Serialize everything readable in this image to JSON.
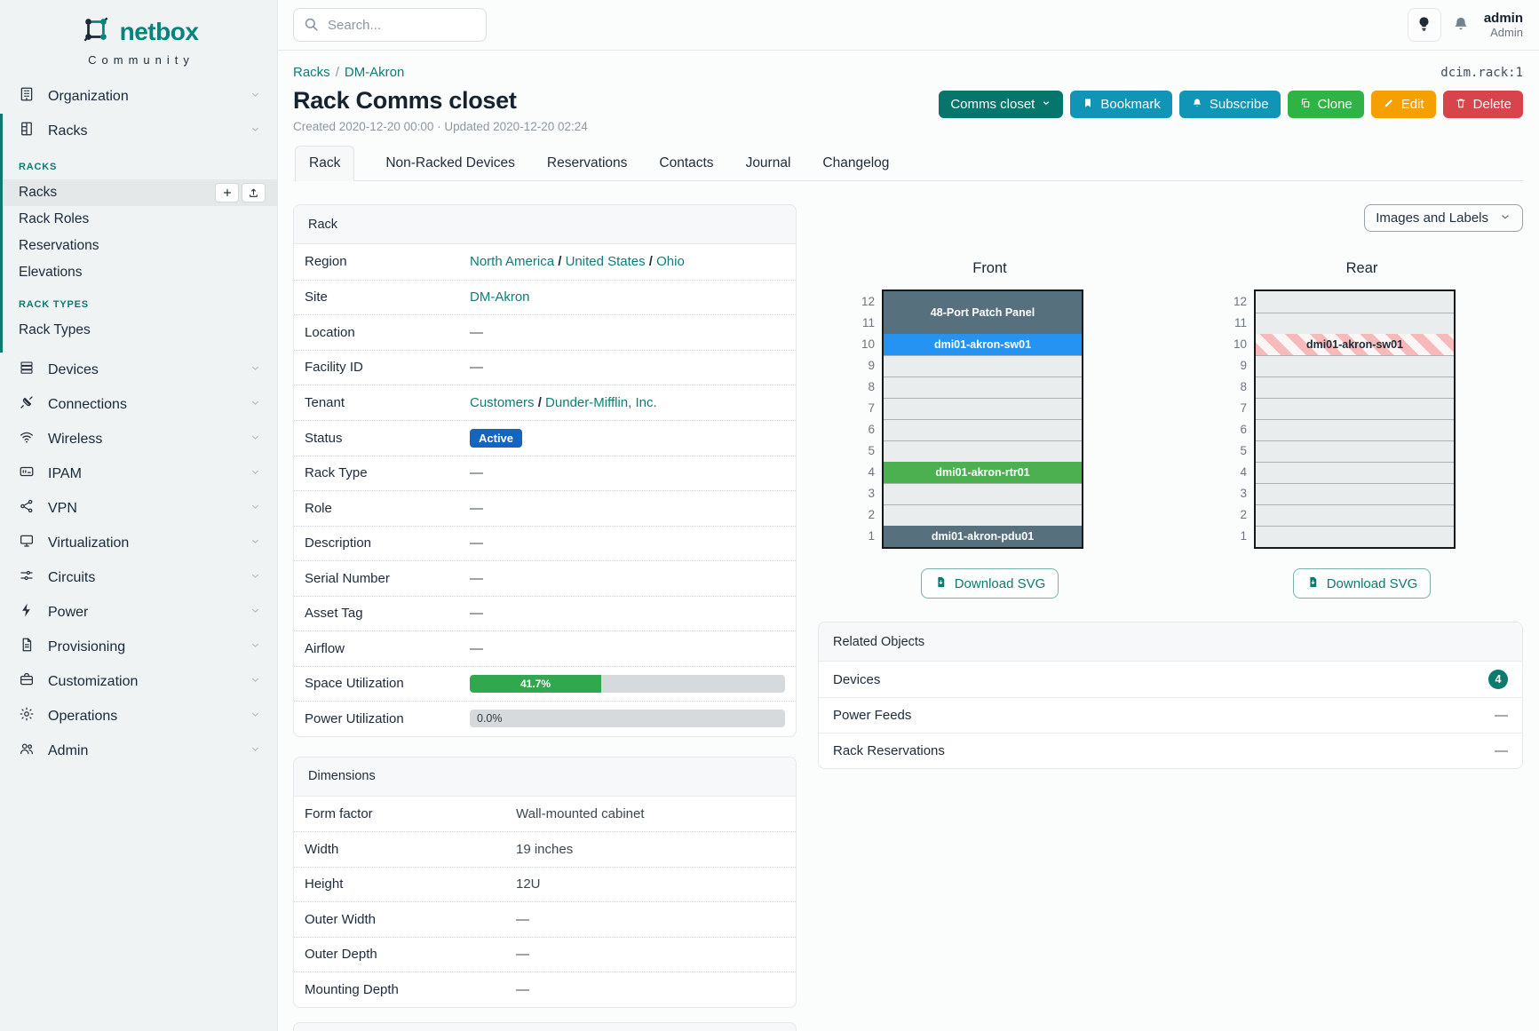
{
  "app": {
    "brand": "netbox",
    "brand_sub": "Community"
  },
  "topbar": {
    "search_placeholder": "Search...",
    "user_name": "admin",
    "user_role": "Admin"
  },
  "sidebar": {
    "top_items": [
      {
        "label": "Organization"
      },
      {
        "label": "Racks"
      }
    ],
    "sections": [
      {
        "header": "RACKS",
        "items": [
          {
            "label": "Racks",
            "active": true
          },
          {
            "label": "Rack Roles"
          },
          {
            "label": "Reservations"
          },
          {
            "label": "Elevations"
          }
        ]
      },
      {
        "header": "RACK TYPES",
        "items": [
          {
            "label": "Rack Types"
          }
        ]
      }
    ],
    "items": [
      {
        "label": "Devices"
      },
      {
        "label": "Connections"
      },
      {
        "label": "Wireless"
      },
      {
        "label": "IPAM"
      },
      {
        "label": "VPN"
      },
      {
        "label": "Virtualization"
      },
      {
        "label": "Circuits"
      },
      {
        "label": "Power"
      },
      {
        "label": "Provisioning"
      },
      {
        "label": "Customization"
      },
      {
        "label": "Operations"
      },
      {
        "label": "Admin"
      }
    ]
  },
  "page": {
    "object_id": "dcim.rack:1",
    "breadcrumb": [
      "Racks",
      "DM-Akron"
    ],
    "title": "Rack Comms closet",
    "meta": "Created 2020-12-20 00:00 · Updated 2020-12-20 02:24",
    "actions": {
      "scope_label": "Comms closet",
      "bookmark_label": "Bookmark",
      "subscribe_label": "Subscribe",
      "clone_label": "Clone",
      "edit_label": "Edit",
      "delete_label": "Delete"
    },
    "tabs": [
      {
        "label": "Rack",
        "active": true
      },
      {
        "label": "Non-Racked Devices"
      },
      {
        "label": "Reservations"
      },
      {
        "label": "Contacts"
      },
      {
        "label": "Journal"
      },
      {
        "label": "Changelog"
      }
    ]
  },
  "rack_panel": {
    "title": "Rack",
    "rows": [
      {
        "label": "Region",
        "type": "links",
        "parts": [
          "North America",
          "United States",
          "Ohio"
        ]
      },
      {
        "label": "Site",
        "type": "links",
        "parts": [
          "DM-Akron"
        ]
      },
      {
        "label": "Location",
        "type": "text",
        "value": "—"
      },
      {
        "label": "Facility ID",
        "type": "text",
        "value": "—"
      },
      {
        "label": "Tenant",
        "type": "links",
        "parts": [
          "Customers",
          "Dunder-Mifflin, Inc."
        ]
      },
      {
        "label": "Status",
        "type": "badge",
        "value": "Active"
      },
      {
        "label": "Rack Type",
        "type": "text",
        "value": "—"
      },
      {
        "label": "Role",
        "type": "text",
        "value": "—"
      },
      {
        "label": "Description",
        "type": "text",
        "value": "—"
      },
      {
        "label": "Serial Number",
        "type": "text",
        "value": "—"
      },
      {
        "label": "Asset Tag",
        "type": "text",
        "value": "—"
      },
      {
        "label": "Airflow",
        "type": "text",
        "value": "—"
      },
      {
        "label": "Space Utilization",
        "type": "progress",
        "value": "41.7%",
        "percent": 41.7
      },
      {
        "label": "Power Utilization",
        "type": "progress",
        "value": "0.0%",
        "percent": 0
      }
    ]
  },
  "dimensions_panel": {
    "title": "Dimensions",
    "rows": [
      {
        "label": "Form factor",
        "type": "text",
        "value": "Wall-mounted cabinet"
      },
      {
        "label": "Width",
        "type": "text",
        "value": "19 inches"
      },
      {
        "label": "Height",
        "type": "text",
        "value": "12U"
      },
      {
        "label": "Outer Width",
        "type": "text",
        "value": "—"
      },
      {
        "label": "Outer Depth",
        "type": "text",
        "value": "—"
      },
      {
        "label": "Mounting Depth",
        "type": "text",
        "value": "—"
      }
    ]
  },
  "elevations": {
    "toggle_label": "Images and Labels",
    "download_label": "Download SVG",
    "units": [
      12,
      11,
      10,
      9,
      8,
      7,
      6,
      5,
      4,
      3,
      2,
      1
    ],
    "front": {
      "title": "Front",
      "segments": [
        {
          "span": 2,
          "label": "48-Port Patch Panel",
          "bg": "#56707e",
          "fg": "#ffffff"
        },
        {
          "span": 1,
          "label": "dmi01-akron-sw01",
          "bg": "#2493f2",
          "fg": "#ffffff"
        },
        {
          "span": 5
        },
        {
          "span": 1,
          "label": "dmi01-akron-rtr01",
          "bg": "#4caf50",
          "fg": "#ffffff"
        },
        {
          "span": 2
        },
        {
          "span": 1,
          "label": "dmi01-akron-pdu01",
          "bg": "#56707e",
          "fg": "#ffffff"
        }
      ]
    },
    "rear": {
      "title": "Rear",
      "segments": [
        {
          "span": 2
        },
        {
          "span": 1,
          "label": "dmi01-akron-sw01",
          "striped": true,
          "fg": "#1d2b36"
        },
        {
          "span": 9
        }
      ]
    }
  },
  "related_objects": {
    "title": "Related Objects",
    "rows": [
      {
        "label": "Devices",
        "count": "4"
      },
      {
        "label": "Power Feeds",
        "dash": "—"
      },
      {
        "label": "Rack Reservations",
        "dash": "—"
      }
    ]
  },
  "colors": {
    "accent_teal": "#0d7a70",
    "status_active_blue": "#1565c0",
    "utilization_green": "#2fa84e",
    "device_slate": "#56707e",
    "device_blue": "#2493f2",
    "device_green": "#4caf50",
    "reserved_stripe_pink": "#f6baba",
    "button_dark_teal": "#06766c",
    "button_cyan": "#1095b7",
    "button_green": "#2fb344",
    "button_amber": "#f59f00",
    "button_red": "#d8444b"
  }
}
